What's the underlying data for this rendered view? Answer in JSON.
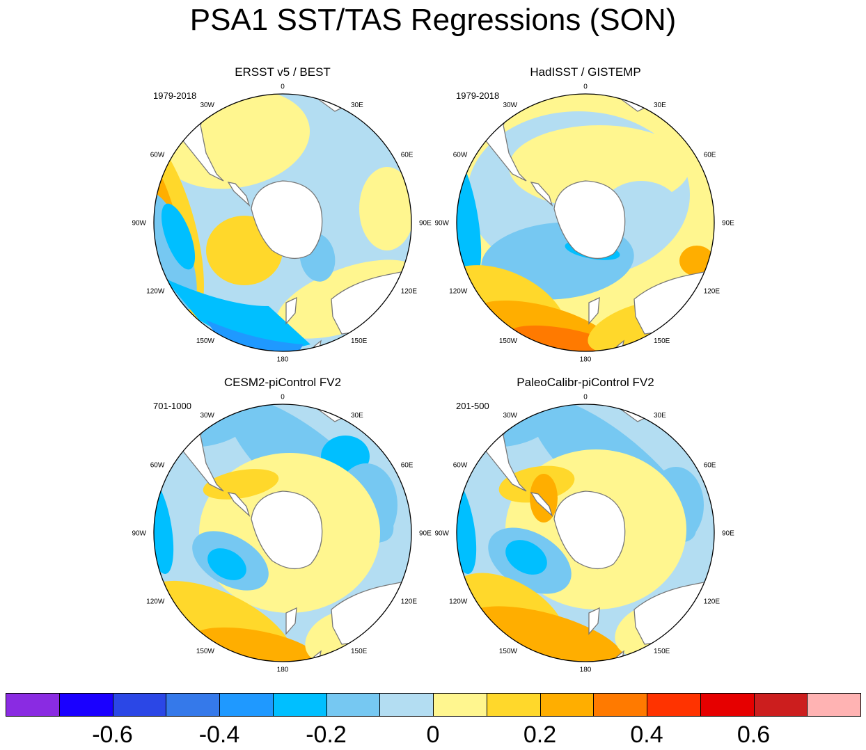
{
  "title": "PSA1 SST/TAS Regressions (SON)",
  "panels": [
    {
      "title": "ERSST v5 / BEST",
      "period": "1979-2018",
      "scheme": "obs1"
    },
    {
      "title": "HadISST / GISTEMP",
      "period": "1979-2018",
      "scheme": "obs2"
    },
    {
      "title": "CESM2-piControl FV2",
      "period": "701-1000",
      "scheme": "mod1"
    },
    {
      "title": "PaleoCalibr-piControl FV2",
      "period": "201-500",
      "scheme": "mod2"
    }
  ],
  "longitude_labels": [
    "0",
    "30E",
    "60E",
    "90E",
    "120E",
    "150E",
    "180",
    "150W",
    "120W",
    "90W",
    "60W",
    "30W"
  ],
  "colorbar": {
    "colors": [
      "#8a2be2",
      "#1a00ff",
      "#2b47e6",
      "#3579ea",
      "#1f99ff",
      "#00bfff",
      "#76c8f2",
      "#b3ddf2",
      "#fff68f",
      "#ffd82b",
      "#ffae00",
      "#ff7a00",
      "#ff3300",
      "#e60000",
      "#cc1e1e",
      "#ffb3b3"
    ],
    "tick_labels": [
      "-0.6",
      "-0.4",
      "-0.2",
      "0",
      "0.2",
      "0.4",
      "0.6"
    ]
  },
  "land_color": "#ffffff",
  "coast_color": "#777777"
}
